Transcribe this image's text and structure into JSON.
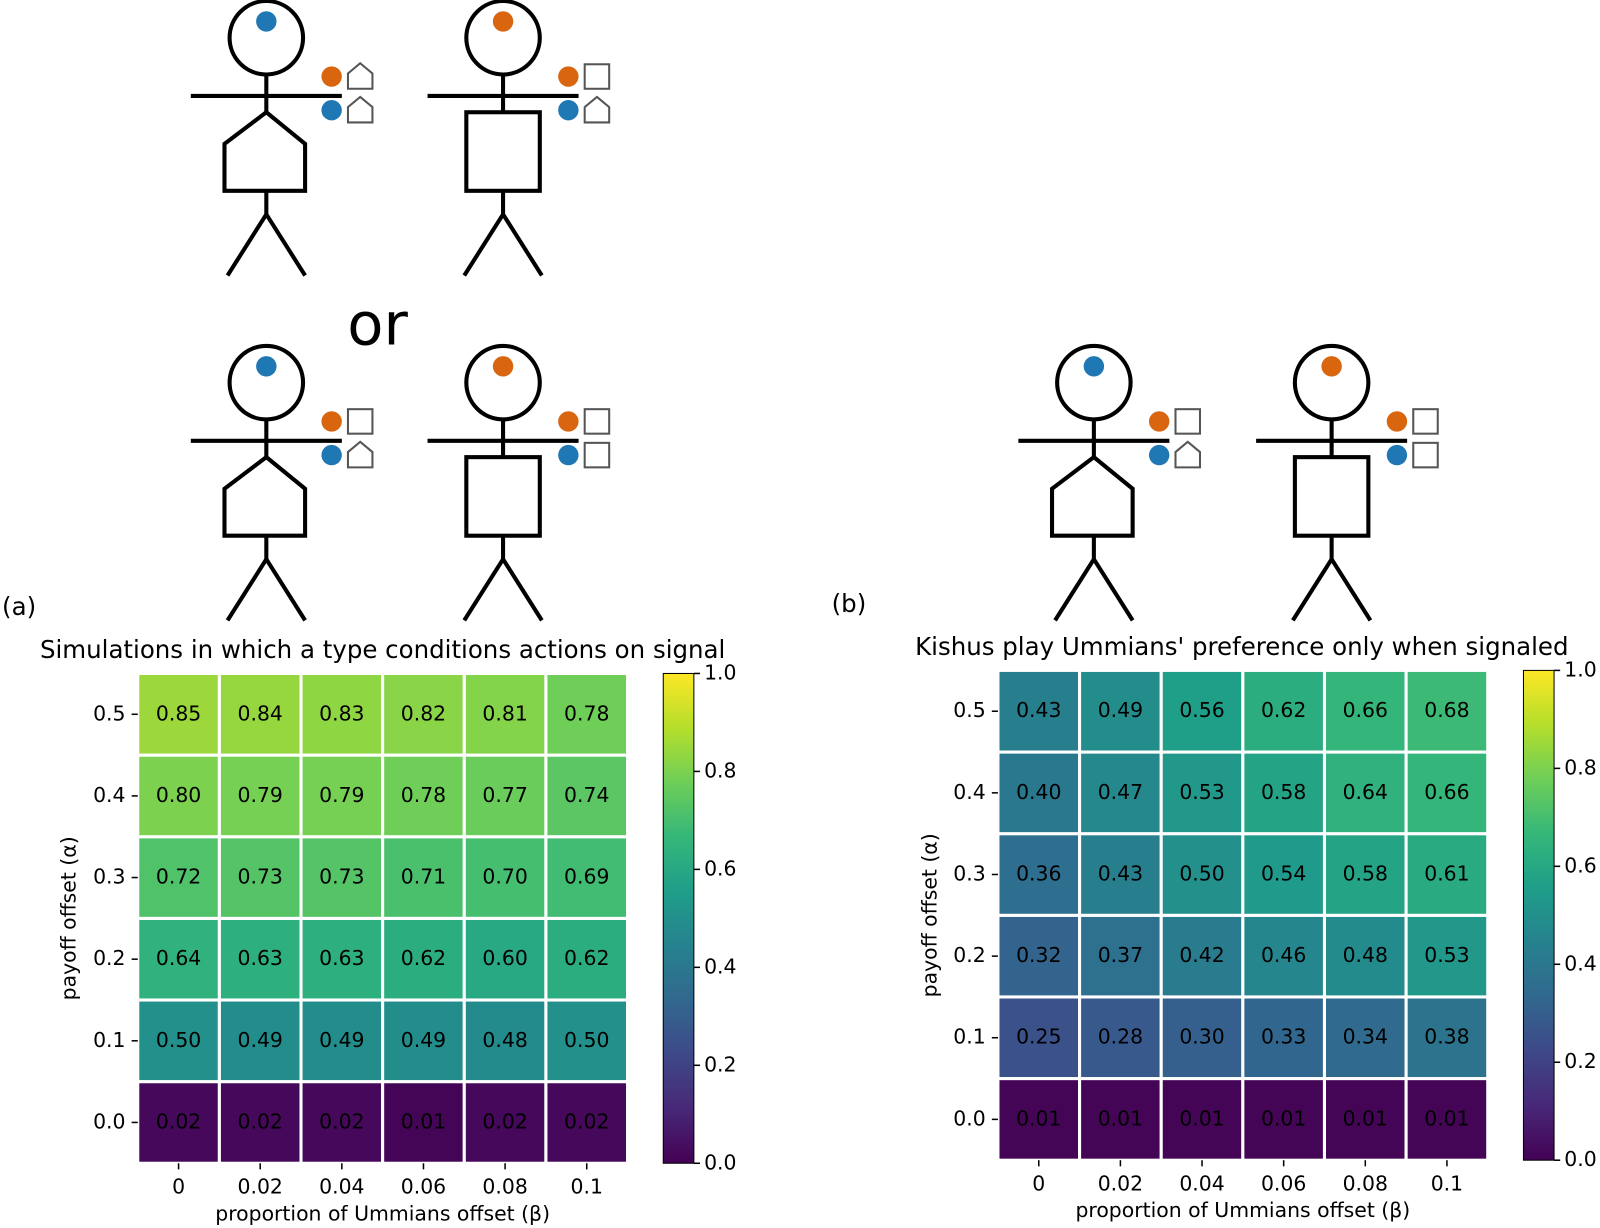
{
  "illustration_text": "or",
  "chart_data": [
    {
      "type": "heatmap",
      "panel_label": "(a)",
      "title": "Simulations in which a type conditions actions on signal",
      "x_label": "proportion of Ummians offset (β)",
      "y_label": "payoff offset (α)",
      "x_categories": [
        "0",
        "0.02",
        "0.04",
        "0.06",
        "0.08",
        "0.1"
      ],
      "y_categories": [
        "0.0",
        "0.1",
        "0.2",
        "0.3",
        "0.4",
        "0.5"
      ],
      "values": [
        [
          0.02,
          0.02,
          0.02,
          0.01,
          0.02,
          0.02
        ],
        [
          0.5,
          0.49,
          0.49,
          0.49,
          0.48,
          0.5
        ],
        [
          0.64,
          0.63,
          0.63,
          0.62,
          0.6,
          0.62
        ],
        [
          0.72,
          0.73,
          0.73,
          0.71,
          0.7,
          0.69
        ],
        [
          0.8,
          0.79,
          0.79,
          0.78,
          0.77,
          0.74
        ],
        [
          0.85,
          0.84,
          0.83,
          0.82,
          0.81,
          0.78
        ]
      ],
      "value_labels": [
        [
          "0.02",
          "0.02",
          "0.02",
          "0.01",
          "0.02",
          "0.02"
        ],
        [
          "0.50",
          "0.49",
          "0.49",
          "0.49",
          "0.48",
          "0.50"
        ],
        [
          "0.64",
          "0.63",
          "0.63",
          "0.62",
          "0.60",
          "0.62"
        ],
        [
          "0.72",
          "0.73",
          "0.73",
          "0.71",
          "0.70",
          "0.69"
        ],
        [
          "0.80",
          "0.79",
          "0.79",
          "0.78",
          "0.77",
          "0.74"
        ],
        [
          "0.85",
          "0.84",
          "0.83",
          "0.82",
          "0.81",
          "0.78"
        ]
      ],
      "colormap": "viridis",
      "zlim": [
        0,
        1
      ],
      "zticks": [
        {
          "value": 0,
          "label": "0.0"
        },
        {
          "value": 0.2,
          "label": "0.2"
        },
        {
          "value": 0.4,
          "label": "0.4"
        },
        {
          "value": 0.6,
          "label": "0.6"
        },
        {
          "value": 0.8,
          "label": "0.8"
        },
        {
          "value": 1,
          "label": "1.0"
        }
      ]
    },
    {
      "type": "heatmap",
      "panel_label": "(b)",
      "title": "Kishus play Ummians' preference only when signaled",
      "x_label": "proportion of Ummians offset (β)",
      "y_label": "payoff offset (α)",
      "x_categories": [
        "0",
        "0.02",
        "0.04",
        "0.06",
        "0.08",
        "0.1"
      ],
      "y_categories": [
        "0.0",
        "0.1",
        "0.2",
        "0.3",
        "0.4",
        "0.5"
      ],
      "values": [
        [
          0.01,
          0.01,
          0.01,
          0.01,
          0.01,
          0.01
        ],
        [
          0.25,
          0.28,
          0.3,
          0.33,
          0.34,
          0.38
        ],
        [
          0.32,
          0.37,
          0.42,
          0.46,
          0.48,
          0.53
        ],
        [
          0.36,
          0.43,
          0.5,
          0.54,
          0.58,
          0.61
        ],
        [
          0.4,
          0.47,
          0.53,
          0.58,
          0.64,
          0.66
        ],
        [
          0.43,
          0.49,
          0.56,
          0.62,
          0.66,
          0.68
        ]
      ],
      "value_labels": [
        [
          "0.01",
          "0.01",
          "0.01",
          "0.01",
          "0.01",
          "0.01"
        ],
        [
          "0.25",
          "0.28",
          "0.30",
          "0.33",
          "0.34",
          "0.38"
        ],
        [
          "0.32",
          "0.37",
          "0.42",
          "0.46",
          "0.48",
          "0.53"
        ],
        [
          "0.36",
          "0.43",
          "0.50",
          "0.54",
          "0.58",
          "0.61"
        ],
        [
          "0.40",
          "0.47",
          "0.53",
          "0.58",
          "0.64",
          "0.66"
        ],
        [
          "0.43",
          "0.49",
          "0.56",
          "0.62",
          "0.66",
          "0.68"
        ]
      ],
      "colormap": "viridis",
      "zlim": [
        0,
        1
      ],
      "zticks": [
        {
          "value": 0,
          "label": "0.0"
        },
        {
          "value": 0.2,
          "label": "0.2"
        },
        {
          "value": 0.4,
          "label": "0.4"
        },
        {
          "value": 0.6,
          "label": "0.6"
        },
        {
          "value": 0.8,
          "label": "0.8"
        },
        {
          "value": 1,
          "label": "1.0"
        }
      ]
    }
  ]
}
